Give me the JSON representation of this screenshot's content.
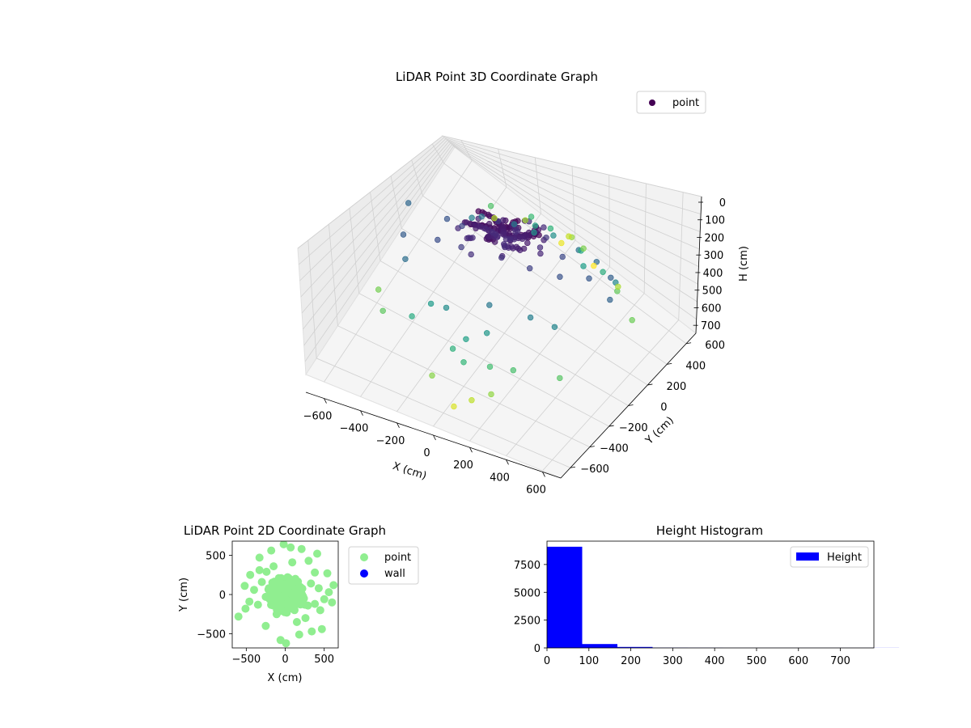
{
  "colors": {
    "scatter3d_colormap": "viridis",
    "point_2d": "#90ee90",
    "wall_2d": "#0000ff",
    "hist_bar": "#0000ff",
    "pane": "#f2f2f2",
    "grid": "#d0d0d0"
  },
  "chart_data": [
    {
      "type": "scatter",
      "subtype": "3d",
      "title": "LiDAR Point 3D Coordinate Graph",
      "xlabel": "X (cm)",
      "ylabel": "Y (cm)",
      "zlabel": "H (cm)",
      "xlim": [
        -700,
        700
      ],
      "ylim": [
        -700,
        700
      ],
      "zlim": [
        780,
        0
      ],
      "z_inverted": true,
      "xticks": [
        "−600",
        "−400",
        "−200",
        "0",
        "200",
        "400",
        "600"
      ],
      "yticks": [
        "−600",
        "−400",
        "−200",
        "0",
        "200",
        "400",
        "600"
      ],
      "zticks": [
        "0",
        "100",
        "200",
        "300",
        "400",
        "500",
        "600",
        "700"
      ],
      "legend": {
        "label": "point",
        "position": "upper right"
      },
      "grid": true,
      "color_by": "H (cm)",
      "series": [
        {
          "name": "point",
          "x": [
            0,
            60,
            -50,
            80,
            -30,
            110,
            -90,
            20,
            150,
            -130,
            40,
            -60,
            190,
            -170,
            90,
            230,
            -220,
            120,
            -60,
            30,
            70,
            -110,
            160,
            -150,
            210,
            -250,
            280,
            -300,
            340,
            -360,
            450,
            -480,
            520,
            600,
            -600,
            380,
            -400,
            250,
            -270,
            100,
            -120,
            300,
            -320,
            420,
            480,
            -100,
            50,
            -40,
            140,
            -200,
            260,
            60,
            -80,
            180,
            -260,
            330,
            10,
            -30,
            90,
            -150,
            200,
            300,
            -350,
            500,
            -450,
            400,
            550,
            -550,
            120,
            -60,
            240,
            30,
            -200,
            350,
            -330,
            150,
            0,
            80,
            -20,
            160
          ],
          "y": [
            0,
            50,
            -40,
            -70,
            90,
            20,
            40,
            -110,
            -30,
            -20,
            150,
            120,
            60,
            80,
            -170,
            -50,
            -30,
            190,
            -200,
            210,
            -140,
            160,
            140,
            -130,
            -120,
            60,
            80,
            -90,
            -60,
            110,
            30,
            -100,
            120,
            -40,
            160,
            240,
            -230,
            300,
            280,
            -320,
            330,
            -280,
            270,
            -260,
            250,
            -380,
            410,
            380,
            -420,
            -350,
            330,
            -480,
            460,
            450,
            -430,
            400,
            -520,
            520,
            -560,
            540,
            -500,
            -450,
            490,
            -350,
            -380,
            420,
            300,
            -250,
            580,
            -600,
            -560,
            620,
            560,
            520,
            480,
            -590,
            640,
            -640,
            600,
            610
          ],
          "h": [
            20,
            25,
            30,
            35,
            30,
            40,
            45,
            40,
            50,
            55,
            45,
            60,
            70,
            65,
            75,
            80,
            85,
            90,
            100,
            95,
            110,
            120,
            115,
            130,
            140,
            150,
            160,
            170,
            180,
            190,
            200,
            210,
            220,
            230,
            240,
            250,
            260,
            270,
            280,
            290,
            300,
            310,
            320,
            330,
            340,
            350,
            360,
            370,
            380,
            390,
            400,
            410,
            420,
            430,
            440,
            450,
            460,
            470,
            480,
            490,
            500,
            510,
            520,
            530,
            540,
            550,
            560,
            570,
            580,
            590,
            600,
            610,
            620,
            630,
            640,
            650,
            660,
            680,
            700,
            720
          ]
        }
      ]
    },
    {
      "type": "scatter",
      "title": "LiDAR Point 2D Coordinate Graph",
      "xlabel": "X (cm)",
      "ylabel": "Y (cm)",
      "xlim": [
        -680,
        680
      ],
      "ylim": [
        -680,
        680
      ],
      "xticks": [
        "−500",
        "0",
        "500"
      ],
      "yticks": [
        "500",
        "0",
        "−500"
      ],
      "legend": {
        "entries": [
          "point",
          "wall"
        ],
        "position": "outside right"
      },
      "series": [
        {
          "name": "point",
          "x": [
            0,
            40,
            -50,
            80,
            -90,
            120,
            -130,
            20,
            160,
            -170,
            60,
            -40,
            200,
            -210,
            100,
            240,
            -250,
            130,
            -70,
            30,
            290,
            -300,
            330,
            -350,
            380,
            -400,
            430,
            -460,
            500,
            -520,
            560,
            600,
            620,
            -600,
            380,
            -330,
            260,
            -240,
            150,
            -150,
            450,
            -450,
            300,
            540,
            470,
            -510,
            410,
            340,
            210,
            -180,
            -60,
            70,
            10,
            -20,
            180,
            -250,
            90,
            -110,
            250,
            -330
          ],
          "y": [
            0,
            60,
            -40,
            -80,
            90,
            30,
            50,
            -120,
            -20,
            -10,
            160,
            130,
            70,
            80,
            -180,
            -50,
            -30,
            200,
            -210,
            220,
            -140,
            160,
            140,
            -130,
            -120,
            60,
            80,
            -90,
            -60,
            110,
            30,
            -100,
            120,
            -280,
            280,
            310,
            -300,
            290,
            -350,
            360,
            -200,
            250,
            430,
            270,
            -440,
            -180,
            520,
            -470,
            580,
            560,
            -580,
            600,
            -620,
            640,
            -510,
            -400,
            410,
            -250,
            -130,
            470
          ]
        },
        {
          "name": "wall",
          "x": [],
          "y": []
        }
      ]
    },
    {
      "type": "bar",
      "subtype": "histogram",
      "title": "Height Histogram",
      "xlabel": "",
      "ylabel": "",
      "xlim": [
        0,
        780
      ],
      "ylim": [
        0,
        9600
      ],
      "xticks": [
        "0",
        "100",
        "200",
        "300",
        "400",
        "500",
        "600",
        "700"
      ],
      "yticks": [
        "0",
        "2500",
        "5000",
        "7500"
      ],
      "legend": {
        "label": "Height",
        "position": "upper right"
      },
      "bin_width": 84,
      "bins": [
        0,
        84,
        168,
        252,
        336,
        420,
        504,
        588,
        672,
        756
      ],
      "series": [
        {
          "name": "Height",
          "values": [
            9100,
            350,
            90,
            25,
            15,
            10,
            8,
            6,
            5,
            4
          ]
        }
      ]
    }
  ]
}
